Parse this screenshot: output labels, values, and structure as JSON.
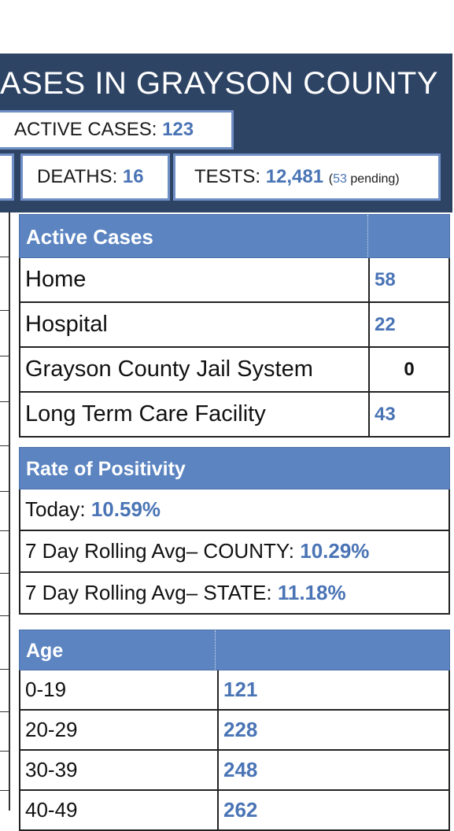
{
  "header": {
    "title": "ASES IN GRAYSON COUNTY",
    "active_label": "ACTIVE CASES:",
    "active_value": "123",
    "deaths_label": "DEATHS:",
    "deaths_value": "16",
    "tests_label": "TESTS:",
    "tests_value": "12,481",
    "pending_open": "(",
    "pending_count": "53",
    "pending_label": "pending)"
  },
  "active_cases": {
    "title": "Active Cases",
    "rows": [
      {
        "label": "Home",
        "value": "58"
      },
      {
        "label": "Hospital",
        "value": "22"
      },
      {
        "label": "Grayson County Jail System",
        "value": "0"
      },
      {
        "label": "Long Term Care Facility",
        "value": "43"
      }
    ]
  },
  "positivity": {
    "title": "Rate of Positivity",
    "rows": [
      {
        "label": "Today:",
        "value": "10.59%"
      },
      {
        "label": "7 Day Rolling Avg– COUNTY:",
        "value": "10.29%"
      },
      {
        "label": "7 Day Rolling Avg– STATE:",
        "value": "11.18%"
      }
    ]
  },
  "age": {
    "title": "Age",
    "rows": [
      {
        "label": "0-19",
        "value": "121"
      },
      {
        "label": "20-29",
        "value": "228"
      },
      {
        "label": "30-39",
        "value": "248"
      },
      {
        "label": "40-49",
        "value": "262"
      }
    ]
  },
  "colors": {
    "banner": "#2e4464",
    "header_row": "#5b84c1",
    "value_text": "#4a74b5"
  }
}
